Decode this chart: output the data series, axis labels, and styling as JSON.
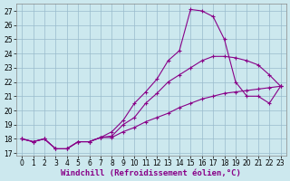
{
  "xlabel": "Windchill (Refroidissement éolien,°C)",
  "bg_color": "#cce8ee",
  "grid_color": "#99bbcc",
  "line_color": "#880088",
  "xlim": [
    -0.5,
    23.5
  ],
  "ylim": [
    16.8,
    27.5
  ],
  "xticks": [
    0,
    1,
    2,
    3,
    4,
    5,
    6,
    7,
    8,
    9,
    10,
    11,
    12,
    13,
    14,
    15,
    16,
    17,
    18,
    19,
    20,
    21,
    22,
    23
  ],
  "yticks": [
    17,
    18,
    19,
    20,
    21,
    22,
    23,
    24,
    25,
    26,
    27
  ],
  "line1_x": [
    0,
    1,
    2,
    3,
    4,
    5,
    6,
    7,
    8,
    9,
    10,
    11,
    12,
    13,
    14,
    15,
    16,
    17,
    18,
    19,
    20,
    21,
    22,
    23
  ],
  "line1_y": [
    18.0,
    17.8,
    18.0,
    17.3,
    17.3,
    17.8,
    17.8,
    18.1,
    18.1,
    18.5,
    18.8,
    19.2,
    19.5,
    19.8,
    20.2,
    20.5,
    20.8,
    21.0,
    21.2,
    21.3,
    21.4,
    21.5,
    21.6,
    21.7
  ],
  "line2_x": [
    0,
    1,
    2,
    3,
    4,
    5,
    6,
    7,
    8,
    9,
    10,
    11,
    12,
    13,
    14,
    15,
    16,
    17,
    18,
    19,
    20,
    21,
    22,
    23
  ],
  "line2_y": [
    18.0,
    17.8,
    18.0,
    17.3,
    17.3,
    17.8,
    17.8,
    18.1,
    18.2,
    19.0,
    19.5,
    20.5,
    21.2,
    22.0,
    22.5,
    23.0,
    23.5,
    23.8,
    23.8,
    23.7,
    23.5,
    23.2,
    22.5,
    21.7
  ],
  "line3_x": [
    0,
    1,
    2,
    3,
    4,
    5,
    6,
    7,
    8,
    9,
    10,
    11,
    12,
    13,
    14,
    15,
    16,
    17,
    18,
    19,
    20,
    21,
    22,
    23
  ],
  "line3_y": [
    18.0,
    17.8,
    18.0,
    17.3,
    17.3,
    17.8,
    17.8,
    18.1,
    18.5,
    19.3,
    20.5,
    21.3,
    22.2,
    23.5,
    24.2,
    27.1,
    27.0,
    26.6,
    25.0,
    22.0,
    21.0,
    21.0,
    20.5,
    21.7
  ],
  "marker": "+",
  "markersize": 3,
  "linewidth": 0.8,
  "xlabel_fontsize": 6.5,
  "tick_fontsize": 5.5
}
